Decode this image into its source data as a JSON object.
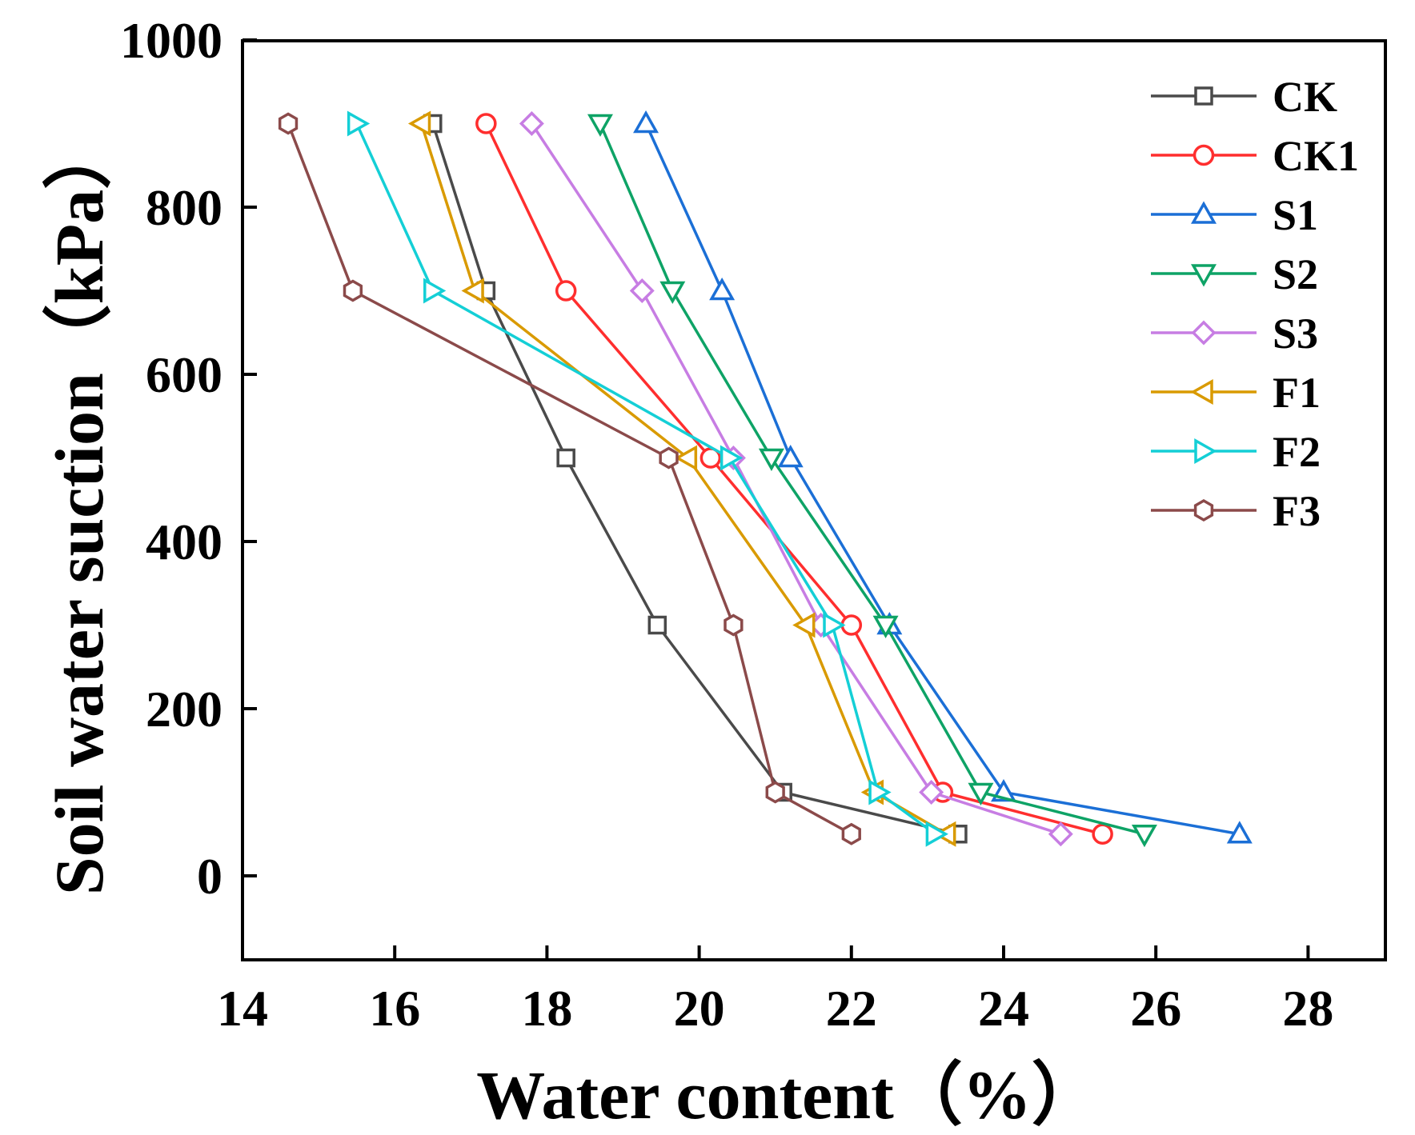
{
  "chart_data": {
    "type": "line",
    "xlabel": "Water content（%）",
    "ylabel": "Soil water suction（kPa）",
    "xlim": [
      14,
      29
    ],
    "ylim": [
      -100,
      1000
    ],
    "xticks": [
      14,
      16,
      18,
      20,
      22,
      24,
      26,
      28
    ],
    "yticks": [
      0,
      200,
      400,
      600,
      800,
      1000
    ],
    "xtick_labels": [
      "14",
      "16",
      "18",
      "20",
      "22",
      "24",
      "26",
      "28"
    ],
    "ytick_labels": [
      "0",
      "200",
      "400",
      "600",
      "800",
      "1000"
    ],
    "grid": false,
    "legend_position": "top-right",
    "series": [
      {
        "name": "CK",
        "color": "#4a4a4a",
        "marker": "square",
        "x": [
          16.5,
          17.2,
          18.25,
          19.45,
          21.1,
          23.4
        ],
        "y": [
          900,
          700,
          500,
          300,
          100,
          50
        ]
      },
      {
        "name": "CK1",
        "color": "#ff2e2e",
        "marker": "circle",
        "x": [
          17.2,
          18.25,
          20.15,
          22.0,
          23.2,
          25.3
        ],
        "y": [
          900,
          700,
          500,
          300,
          100,
          50
        ]
      },
      {
        "name": "S1",
        "color": "#1b6fd6",
        "marker": "triangle-up",
        "x": [
          19.3,
          20.3,
          21.2,
          22.5,
          24.0,
          27.1
        ],
        "y": [
          900,
          700,
          500,
          300,
          100,
          50
        ]
      },
      {
        "name": "S2",
        "color": "#0ea366",
        "marker": "triangle-down",
        "x": [
          18.7,
          19.65,
          20.95,
          22.45,
          23.7,
          25.85
        ],
        "y": [
          900,
          700,
          500,
          300,
          100,
          50
        ]
      },
      {
        "name": "S3",
        "color": "#c77de3",
        "marker": "diamond",
        "x": [
          17.8,
          19.25,
          20.45,
          21.6,
          23.05,
          24.75
        ],
        "y": [
          900,
          700,
          500,
          300,
          100,
          50
        ]
      },
      {
        "name": "F1",
        "color": "#d99a00",
        "marker": "triangle-left",
        "x": [
          16.35,
          17.05,
          19.85,
          21.4,
          22.3,
          23.25
        ],
        "y": [
          900,
          700,
          500,
          300,
          100,
          50
        ]
      },
      {
        "name": "F2",
        "color": "#14cfd6",
        "marker": "triangle-right",
        "x": [
          15.5,
          16.5,
          20.4,
          21.75,
          22.35,
          23.1
        ],
        "y": [
          900,
          700,
          500,
          300,
          100,
          50
        ]
      },
      {
        "name": "F3",
        "color": "#8b4a4a",
        "marker": "hexagon",
        "x": [
          14.6,
          15.45,
          19.6,
          20.45,
          21.0,
          22.0
        ],
        "y": [
          900,
          700,
          500,
          300,
          100,
          50
        ]
      }
    ]
  }
}
